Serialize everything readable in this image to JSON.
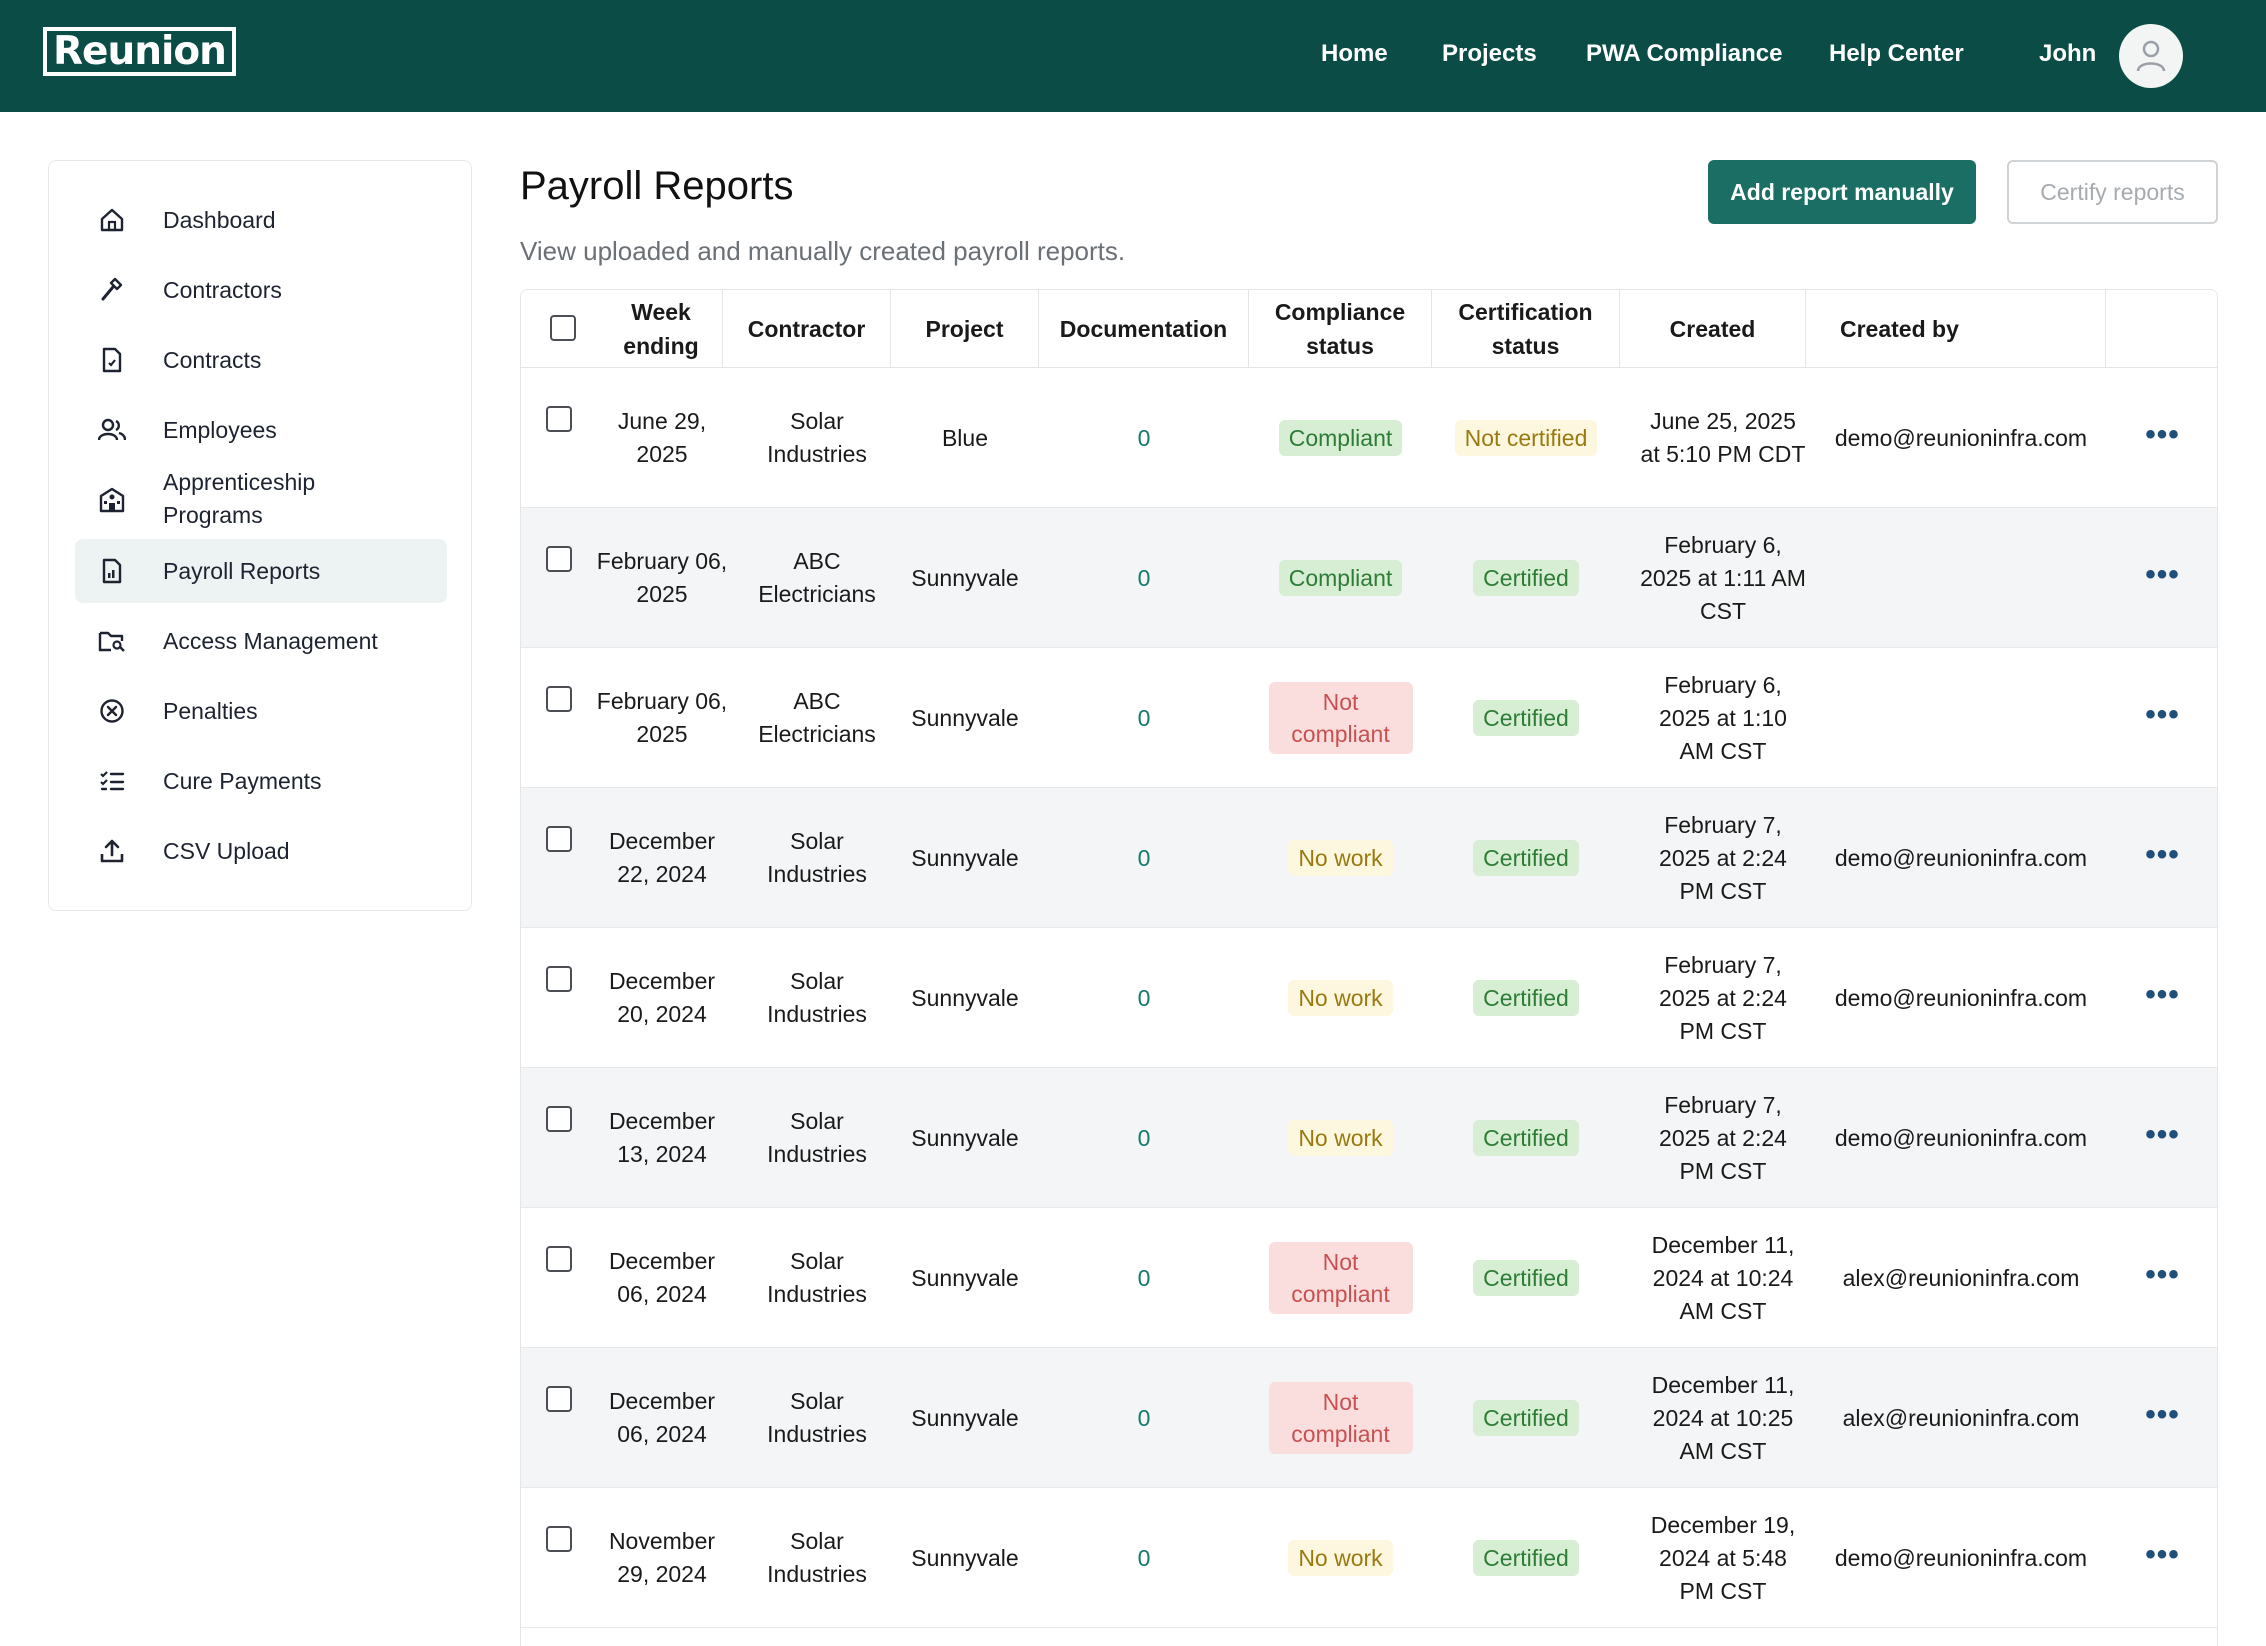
{
  "app": {
    "logo_text": "Reunion",
    "nav": [
      "Home",
      "Projects",
      "PWA Compliance",
      "Help Center"
    ],
    "user_name": "John"
  },
  "sidebar": {
    "items": [
      {
        "label": "Dashboard",
        "icon": "home-icon"
      },
      {
        "label": "Contractors",
        "icon": "hammer-icon"
      },
      {
        "label": "Contracts",
        "icon": "document-icon"
      },
      {
        "label": "Employees",
        "icon": "users-icon"
      },
      {
        "label": "Apprenticeship Programs",
        "icon": "school-icon"
      },
      {
        "label": "Payroll Reports",
        "icon": "report-icon",
        "active": true
      },
      {
        "label": "Access Management",
        "icon": "folder-key-icon"
      },
      {
        "label": "Penalties",
        "icon": "x-circle-icon"
      },
      {
        "label": "Cure Payments",
        "icon": "checklist-icon"
      },
      {
        "label": "CSV Upload",
        "icon": "upload-icon"
      }
    ]
  },
  "main": {
    "title": "Payroll Reports",
    "subtitle": "View uploaded and manually created payroll reports.",
    "add_button": "Add report manually",
    "certify_button": "Certify reports"
  },
  "table": {
    "columns": [
      "Week ending",
      "Contractor",
      "Project",
      "Documentation",
      "Compliance status",
      "Certification status",
      "Created",
      "Created by"
    ],
    "rows": [
      {
        "week": "June 29, 2025",
        "contractor": "Solar Industries",
        "project": "Blue",
        "docs": "0",
        "compliance": "Compliant",
        "certification": "Not certified",
        "created": "June 25, 2025 at 5:10 PM CDT",
        "created_by": "demo@reunioninfra.com"
      },
      {
        "week": "February 06, 2025",
        "contractor": "ABC Electricians",
        "project": "Sunnyvale",
        "docs": "0",
        "compliance": "Compliant",
        "certification": "Certified",
        "created": "February 6, 2025 at 1:11 AM CST",
        "created_by": ""
      },
      {
        "week": "February 06, 2025",
        "contractor": "ABC Electricians",
        "project": "Sunnyvale",
        "docs": "0",
        "compliance": "Not compliant",
        "certification": "Certified",
        "created": "February 6, 2025 at 1:10 AM CST",
        "created_by": ""
      },
      {
        "week": "December 22, 2024",
        "contractor": "Solar Industries",
        "project": "Sunnyvale",
        "docs": "0",
        "compliance": "No work",
        "certification": "Certified",
        "created": "February 7, 2025 at 2:24 PM CST",
        "created_by": "demo@reunioninfra.com"
      },
      {
        "week": "December 20, 2024",
        "contractor": "Solar Industries",
        "project": "Sunnyvale",
        "docs": "0",
        "compliance": "No work",
        "certification": "Certified",
        "created": "February 7, 2025 at 2:24 PM CST",
        "created_by": "demo@reunioninfra.com"
      },
      {
        "week": "December 13, 2024",
        "contractor": "Solar Industries",
        "project": "Sunnyvale",
        "docs": "0",
        "compliance": "No work",
        "certification": "Certified",
        "created": "February 7, 2025 at 2:24 PM CST",
        "created_by": "demo@reunioninfra.com"
      },
      {
        "week": "December 06, 2024",
        "contractor": "Solar Industries",
        "project": "Sunnyvale",
        "docs": "0",
        "compliance": "Not compliant",
        "certification": "Certified",
        "created": "December 11, 2024 at 10:24 AM CST",
        "created_by": "alex@reunioninfra.com"
      },
      {
        "week": "December 06, 2024",
        "contractor": "Solar Industries",
        "project": "Sunnyvale",
        "docs": "0",
        "compliance": "Not compliant",
        "certification": "Certified",
        "created": "December 11, 2024 at 10:25 AM CST",
        "created_by": "alex@reunioninfra.com"
      },
      {
        "week": "November 29, 2024",
        "contractor": "Solar Industries",
        "project": "Sunnyvale",
        "docs": "0",
        "compliance": "No work",
        "certification": "Certified",
        "created": "December 19, 2024 at 5:48 PM CST",
        "created_by": "demo@reunioninfra.com"
      }
    ],
    "row_menu_label": "•••"
  },
  "colors": {
    "header_bg": "#0b4d46",
    "primary_button": "#1a6e63",
    "compliant_bg": "#d7eed5",
    "not_compliant_bg": "#fadede",
    "no_work_bg": "#fdf7df"
  }
}
